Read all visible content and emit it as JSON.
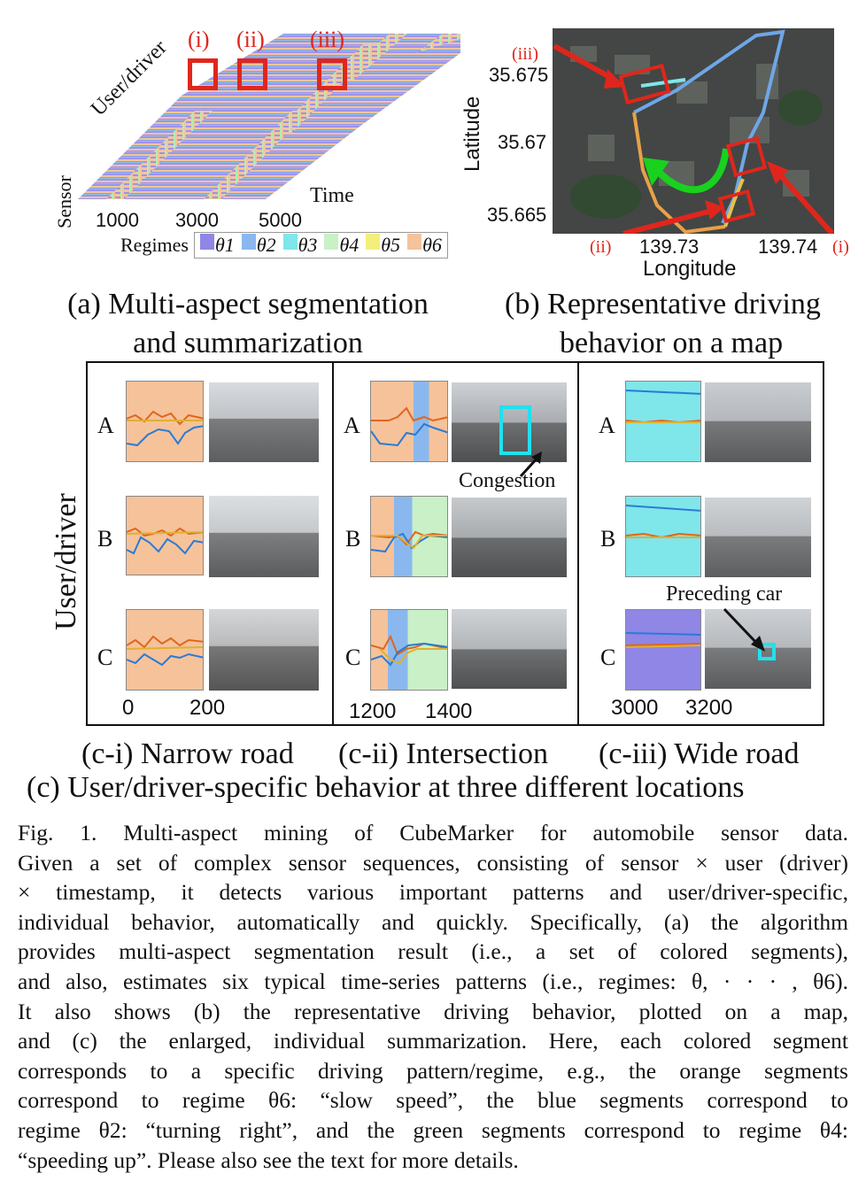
{
  "panel_a": {
    "markers": [
      "(i)",
      "(ii)",
      "(iii)"
    ],
    "user_label": "User/driver",
    "sensor_label": "Sensor",
    "time_label": "Time",
    "ticks": [
      "1000",
      "3000",
      "5000"
    ],
    "regimes_label": "Regimes",
    "regimes": [
      {
        "name": "θ1",
        "color": "#8f86e6"
      },
      {
        "name": "θ2",
        "color": "#8ab8ee"
      },
      {
        "name": "θ3",
        "color": "#7fe6ea"
      },
      {
        "name": "θ4",
        "color": "#c9f0c6"
      },
      {
        "name": "θ5",
        "color": "#f4ef7a"
      },
      {
        "name": "θ6",
        "color": "#f6c29a"
      }
    ],
    "caption_line1": "(a) Multi-aspect segmentation",
    "caption_line2": "and summarization"
  },
  "panel_b": {
    "y_ticks": [
      "35.675",
      "35.67",
      "35.665"
    ],
    "x_ticks": [
      "139.73",
      "139.74"
    ],
    "ylabel": "Latitude",
    "xlabel": "Longitude",
    "markers": [
      "(iii)",
      "(ii)",
      "(i)"
    ],
    "caption_line1": "(b) Representative driving",
    "caption_line2": "behavior on a map"
  },
  "panel_c": {
    "ylabel": "User/driver",
    "rows": [
      "A",
      "B",
      "C"
    ],
    "columns": [
      {
        "ticks": [
          "0",
          "200"
        ],
        "caption": "(c-i) Narrow road"
      },
      {
        "ticks": [
          "1200",
          "1400"
        ],
        "caption": "(c-ii) Intersection",
        "annotation": "Congestion"
      },
      {
        "ticks": [
          "3000",
          "3200"
        ],
        "caption": "(c-iii) Wide road",
        "annotation": "Preceding car"
      }
    ],
    "caption": "(c) User/driver-specific behavior at three different locations"
  },
  "figure_caption": {
    "lines": [
      "Fig. 1.   Multi-aspect mining of CubeMarker for automobile sensor data.",
      "Given a set of complex sensor sequences, consisting of sensor × user (driver)",
      "× timestamp, it detects various important patterns and user/driver-specific,",
      "individual behavior, automatically and quickly. Specifically, (a) the algorithm",
      "provides multi-aspect segmentation result (i.e., a set of colored segments),",
      "and also, estimates six typical time-series patterns (i.e., regimes: θ, · · · , θ6).",
      "It also shows (b) the representative driving behavior, plotted on a map,",
      "and (c) the enlarged, individual summarization. Here, each colored segment",
      "corresponds to a specific driving pattern/regime, e.g., the orange segments",
      "correspond to regime θ6: “slow speed”, the blue segments correspond to",
      "regime θ2: “turning right”, and the green segments correspond to regime θ4:",
      "“speeding up”. Please also see the text for more details."
    ]
  }
}
